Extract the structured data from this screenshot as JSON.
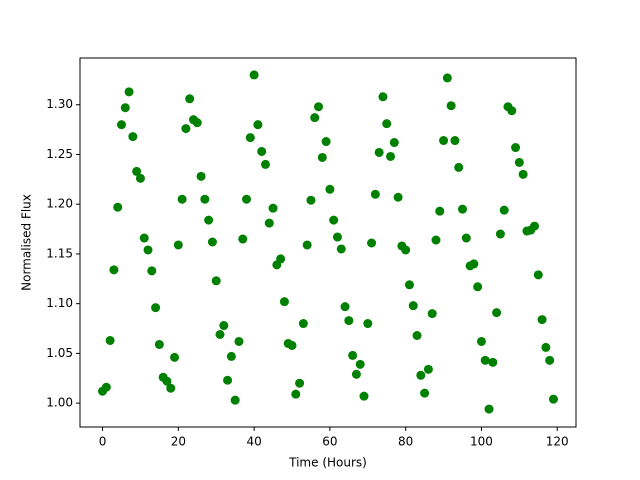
{
  "chart_data": {
    "type": "scatter",
    "xlabel": "Time (Hours)",
    "ylabel": "Normalised Flux",
    "color": "#008000",
    "x": [
      0,
      1,
      2,
      3,
      4,
      5,
      6,
      7,
      8,
      9,
      10,
      11,
      12,
      13,
      14,
      15,
      16,
      17,
      18,
      19,
      20,
      21,
      22,
      23,
      24,
      25,
      26,
      27,
      28,
      29,
      30,
      31,
      32,
      33,
      34,
      35,
      36,
      37,
      38,
      39,
      40,
      41,
      42,
      43,
      44,
      45,
      46,
      47,
      48,
      49,
      50,
      51,
      52,
      53,
      54,
      55,
      56,
      57,
      58,
      59,
      60,
      61,
      62,
      63,
      64,
      65,
      66,
      67,
      68,
      69,
      70,
      71,
      72,
      73,
      74,
      75,
      76,
      77,
      78,
      79,
      80,
      81,
      82,
      83,
      84,
      85,
      86,
      87,
      88,
      89,
      90,
      91,
      92,
      93,
      94,
      95,
      96,
      97,
      98,
      99,
      100,
      101,
      102,
      103,
      104,
      105,
      106,
      107,
      108,
      109,
      110,
      111,
      112,
      113,
      114,
      115,
      116,
      117,
      118,
      119
    ],
    "values": [
      1.012,
      1.016,
      1.063,
      1.134,
      1.197,
      1.28,
      1.297,
      1.313,
      1.268,
      1.233,
      1.226,
      1.166,
      1.154,
      1.133,
      1.096,
      1.059,
      1.026,
      1.022,
      1.015,
      1.046,
      1.159,
      1.205,
      1.276,
      1.306,
      1.285,
      1.282,
      1.228,
      1.205,
      1.184,
      1.162,
      1.123,
      1.069,
      1.078,
      1.023,
      1.047,
      1.003,
      1.062,
      1.165,
      1.205,
      1.267,
      1.33,
      1.28,
      1.253,
      1.24,
      1.181,
      1.196,
      1.139,
      1.145,
      1.102,
      1.06,
      1.058,
      1.009,
      1.02,
      1.08,
      1.159,
      1.204,
      1.287,
      1.298,
      1.247,
      1.263,
      1.215,
      1.184,
      1.167,
      1.155,
      1.097,
      1.083,
      1.048,
      1.029,
      1.039,
      1.007,
      1.08,
      1.161,
      1.21,
      1.252,
      1.308,
      1.281,
      1.248,
      1.262,
      1.207,
      1.158,
      1.154,
      1.119,
      1.098,
      1.068,
      1.028,
      1.01,
      1.034,
      1.09,
      1.164,
      1.193,
      1.264,
      1.327,
      1.299,
      1.264,
      1.237,
      1.195,
      1.166,
      1.138,
      1.14,
      1.117,
      1.062,
      1.043,
      0.994,
      1.041,
      1.091,
      1.17,
      1.194,
      1.298,
      1.294,
      1.257,
      1.242,
      1.23,
      1.173,
      1.174,
      1.178,
      1.129,
      1.084,
      1.056,
      1.043,
      1.004
    ],
    "xlim": [
      -5.95,
      124.95
    ],
    "xticks": [
      0,
      20,
      40,
      60,
      80,
      100,
      120
    ],
    "ylim": [
      0.976,
      1.347
    ],
    "yticks": [
      {
        "value": 1.0,
        "label": "1.00"
      },
      1.05,
      {
        "value": 1.1,
        "label": "1.10"
      },
      1.15,
      {
        "value": 1.2,
        "label": "1.20"
      },
      1.25,
      {
        "value": 1.3,
        "label": "1.30"
      }
    ]
  }
}
